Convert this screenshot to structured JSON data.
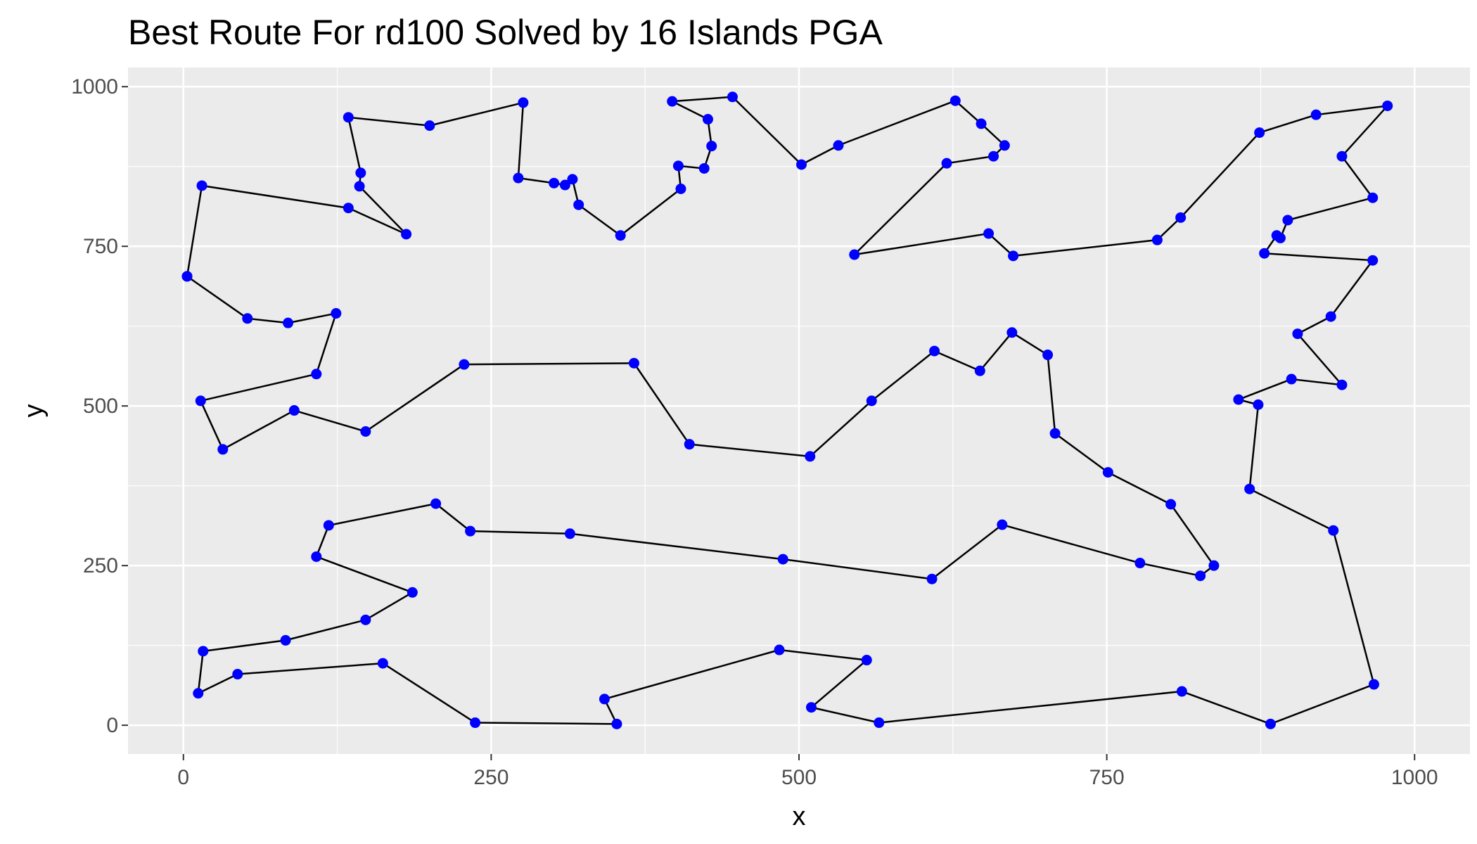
{
  "chart_data": {
    "type": "scatter",
    "title": "Best Route For rd100 Solved by 16 Islands PGA",
    "xlabel": "x",
    "ylabel": "y",
    "xlim": [
      -45,
      1045
    ],
    "ylim": [
      -45,
      1030
    ],
    "x_ticks": [
      0,
      250,
      500,
      750,
      1000
    ],
    "y_ticks": [
      0,
      250,
      500,
      750,
      1000
    ],
    "x_tick_labels": [
      "0",
      "250",
      "500",
      "750",
      "1000"
    ],
    "y_tick_labels": [
      "0",
      "250",
      "500",
      "750",
      "1000"
    ],
    "grid": true,
    "legend": "none",
    "colors": {
      "panel": "#ebebeb",
      "grid": "#ffffff",
      "point": "#0000ff",
      "line": "#000000"
    },
    "series": [
      {
        "style": "path",
        "points": [
          [
            3,
            703
          ],
          [
            52,
            637
          ],
          [
            85,
            630
          ],
          [
            124,
            645
          ],
          [
            108,
            550
          ],
          [
            14,
            508
          ],
          [
            32,
            432
          ],
          [
            90,
            493
          ],
          [
            148,
            460
          ],
          [
            228,
            565
          ],
          [
            366,
            567
          ],
          [
            411,
            440
          ],
          [
            509,
            421
          ],
          [
            559,
            508
          ],
          [
            610,
            586
          ],
          [
            647,
            555
          ],
          [
            673,
            615
          ],
          [
            702,
            580
          ],
          [
            708,
            457
          ],
          [
            751,
            396
          ],
          [
            802,
            346
          ],
          [
            837,
            250
          ],
          [
            826,
            234
          ],
          [
            777,
            254
          ],
          [
            665,
            314
          ],
          [
            608,
            229
          ],
          [
            487,
            260
          ],
          [
            314,
            300
          ],
          [
            233,
            304
          ],
          [
            205,
            347
          ],
          [
            118,
            313
          ],
          [
            108,
            264
          ],
          [
            186,
            208
          ],
          [
            148,
            165
          ],
          [
            83,
            133
          ],
          [
            16,
            116
          ],
          [
            12,
            50
          ],
          [
            44,
            80
          ],
          [
            162,
            97
          ],
          [
            237,
            4
          ],
          [
            352,
            2
          ],
          [
            342,
            41
          ],
          [
            484,
            118
          ],
          [
            555,
            102
          ],
          [
            510,
            28
          ],
          [
            565,
            4
          ],
          [
            811,
            53
          ],
          [
            883,
            2
          ],
          [
            967,
            64
          ],
          [
            934,
            305
          ],
          [
            866,
            370
          ],
          [
            873,
            502
          ],
          [
            857,
            510
          ],
          [
            900,
            542
          ],
          [
            941,
            533
          ],
          [
            905,
            613
          ],
          [
            932,
            640
          ],
          [
            966,
            728
          ],
          [
            878,
            739
          ],
          [
            888,
            767
          ],
          [
            891,
            763
          ],
          [
            897,
            791
          ],
          [
            966,
            826
          ],
          [
            941,
            891
          ],
          [
            978,
            970
          ],
          [
            920,
            956
          ],
          [
            874,
            928
          ],
          [
            810,
            795
          ],
          [
            791,
            760
          ],
          [
            674,
            735
          ],
          [
            654,
            770
          ],
          [
            545,
            737
          ],
          [
            620,
            880
          ],
          [
            658,
            891
          ],
          [
            667,
            908
          ],
          [
            648,
            942
          ],
          [
            627,
            978
          ],
          [
            532,
            908
          ],
          [
            502,
            878
          ],
          [
            446,
            984
          ],
          [
            397,
            977
          ],
          [
            426,
            949
          ],
          [
            429,
            907
          ],
          [
            423,
            872
          ],
          [
            402,
            876
          ],
          [
            404,
            840
          ],
          [
            355,
            767
          ],
          [
            321,
            815
          ],
          [
            316,
            855
          ],
          [
            310,
            846
          ],
          [
            301,
            849
          ],
          [
            272,
            857
          ],
          [
            276,
            975
          ],
          [
            200,
            939
          ],
          [
            134,
            952
          ],
          [
            144,
            865
          ],
          [
            143,
            844
          ],
          [
            181,
            769
          ],
          [
            134,
            810
          ],
          [
            15,
            845
          ],
          [
            3,
            703
          ]
        ]
      }
    ]
  }
}
